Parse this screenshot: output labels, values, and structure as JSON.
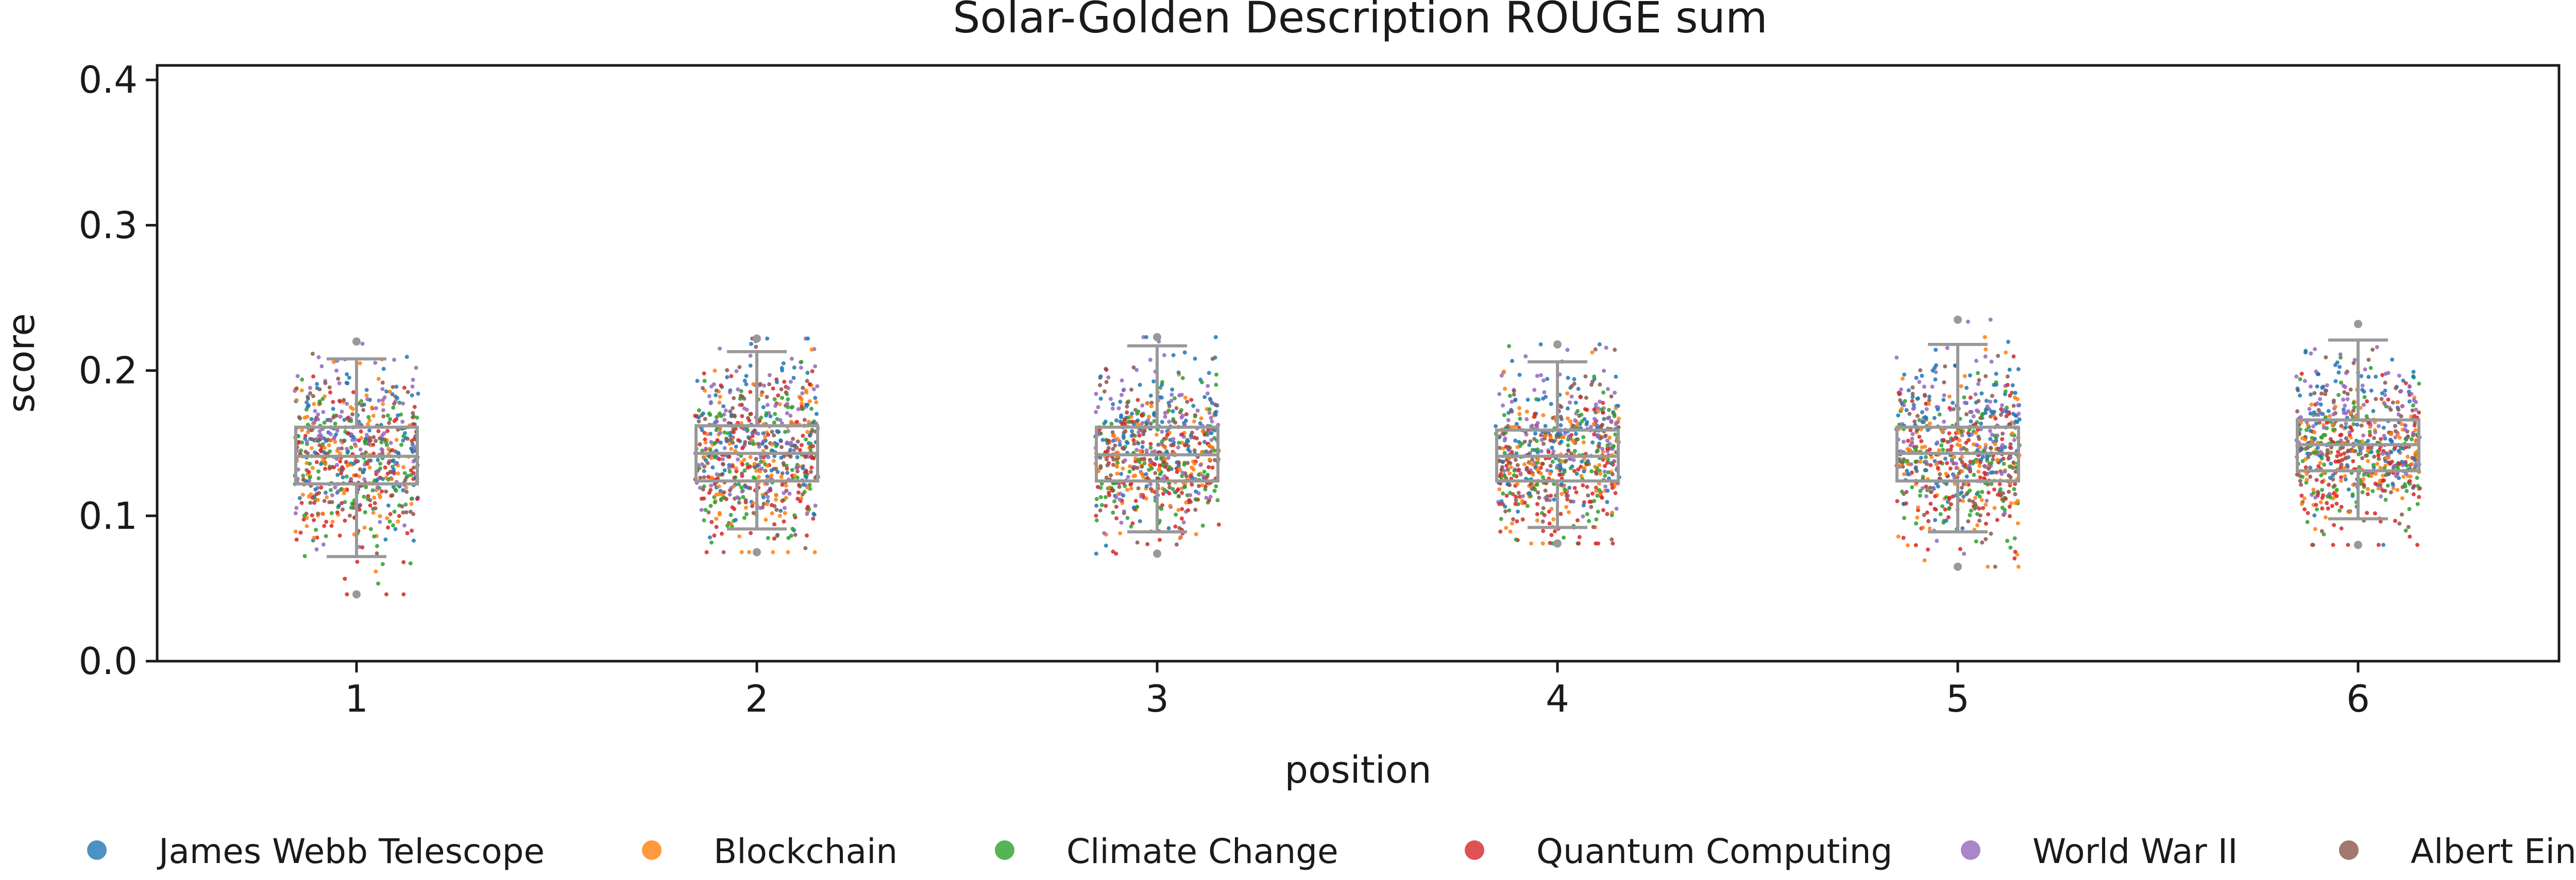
{
  "chart_data": {
    "type": "box-strip",
    "title": "Solar-Golden Description ROUGE sum",
    "xlabel": "position",
    "ylabel": "score",
    "categories": [
      "1",
      "2",
      "3",
      "4",
      "5",
      "6"
    ],
    "ylim": [
      0.0,
      0.41
    ],
    "yticks": [
      "0.0",
      "0.1",
      "0.2",
      "0.3",
      "0.4"
    ],
    "grid": false,
    "legend_position": "bottom",
    "box_color": "#999999",
    "series": [
      {
        "name": "James Webb Telescope",
        "color": "#1f77b4",
        "center_offset": 0.012
      },
      {
        "name": "Blockchain",
        "color": "#ff7f0e",
        "center_offset": -0.004
      },
      {
        "name": "Climate Change",
        "color": "#2ca02c",
        "center_offset": -0.006
      },
      {
        "name": "Quantum Computing",
        "color": "#d62728",
        "center_offset": -0.012
      },
      {
        "name": "World War II",
        "color": "#9467bd",
        "center_offset": 0.014
      },
      {
        "name": "Albert Einstein",
        "color": "#8c564b",
        "center_offset": 0.002
      }
    ],
    "boxes": [
      {
        "category": "1",
        "q1": 0.122,
        "median": 0.141,
        "q3": 0.161,
        "whisker_low": 0.072,
        "whisker_high": 0.208,
        "min": 0.046,
        "max": 0.22
      },
      {
        "category": "2",
        "q1": 0.124,
        "median": 0.143,
        "q3": 0.162,
        "whisker_low": 0.091,
        "whisker_high": 0.213,
        "min": 0.075,
        "max": 0.222
      },
      {
        "category": "3",
        "q1": 0.124,
        "median": 0.142,
        "q3": 0.161,
        "whisker_low": 0.089,
        "whisker_high": 0.217,
        "min": 0.074,
        "max": 0.223
      },
      {
        "category": "4",
        "q1": 0.124,
        "median": 0.141,
        "q3": 0.159,
        "whisker_low": 0.092,
        "whisker_high": 0.206,
        "min": 0.081,
        "max": 0.218
      },
      {
        "category": "5",
        "q1": 0.124,
        "median": 0.143,
        "q3": 0.161,
        "whisker_low": 0.089,
        "whisker_high": 0.218,
        "min": 0.065,
        "max": 0.235
      },
      {
        "category": "6",
        "q1": 0.131,
        "median": 0.149,
        "q3": 0.166,
        "whisker_low": 0.098,
        "whisker_high": 0.221,
        "min": 0.08,
        "max": 0.232
      }
    ]
  }
}
